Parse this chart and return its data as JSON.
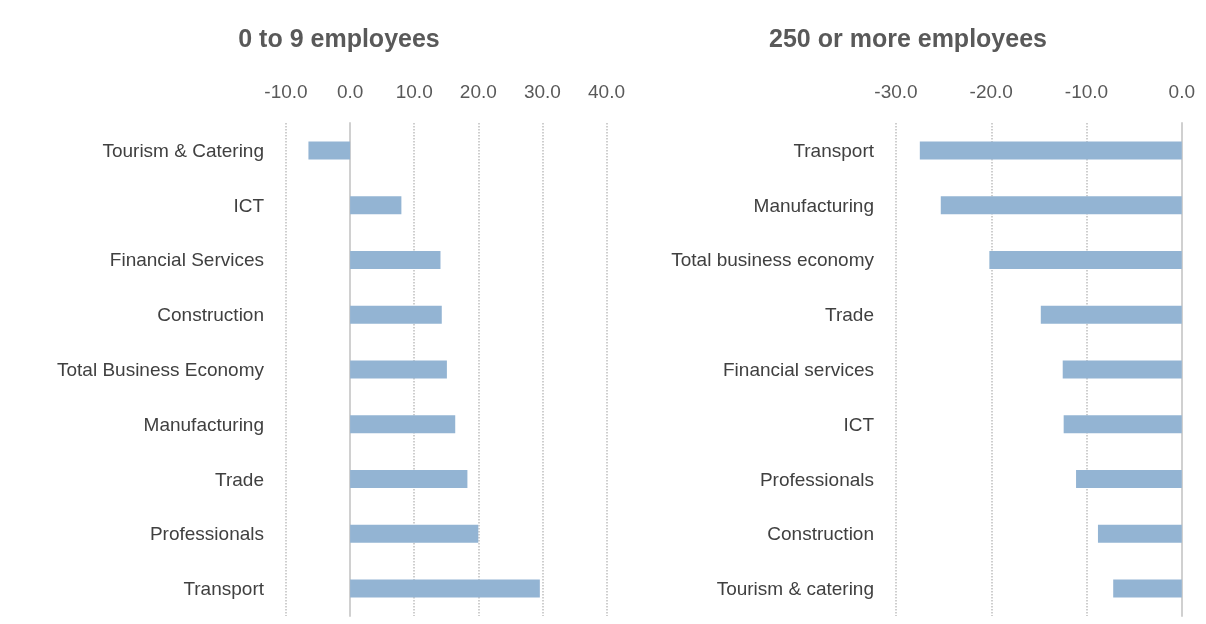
{
  "chart_data": [
    {
      "type": "bar",
      "orientation": "horizontal",
      "title": "0 to 9 employees",
      "categories": [
        "Tourism & Catering",
        "ICT",
        "Financial Services",
        "Construction",
        "Total Business Economy",
        "Manufacturing",
        "Trade",
        "Professionals",
        "Transport"
      ],
      "values": [
        -6.5,
        8.0,
        14.1,
        14.3,
        15.1,
        16.4,
        18.3,
        20.0,
        29.6
      ],
      "color": "#93b4d3",
      "xlim": [
        -10,
        40
      ],
      "xticks": [
        {
          "value": -10,
          "label": "-10.0"
        },
        {
          "value": 0,
          "label": "0.0"
        },
        {
          "value": 10,
          "label": "10.0"
        },
        {
          "value": 20,
          "label": "20.0"
        },
        {
          "value": 30,
          "label": "30.0"
        },
        {
          "value": 40,
          "label": "40.0"
        }
      ],
      "grid": "x"
    },
    {
      "type": "bar",
      "orientation": "horizontal",
      "title": "250 or more employees",
      "categories": [
        "Transport",
        "Manufacturing",
        "Total business economy",
        "Trade",
        "Financial services",
        "ICT",
        "Professionals",
        "Construction",
        "Tourism & catering"
      ],
      "values": [
        -27.5,
        -25.3,
        -20.2,
        -14.8,
        -12.5,
        -12.4,
        -11.1,
        -8.8,
        -7.2
      ],
      "color": "#93b4d3",
      "xlim": [
        -30,
        0
      ],
      "xticks": [
        {
          "value": -30,
          "label": "-30.0"
        },
        {
          "value": -20,
          "label": "-20.0"
        },
        {
          "value": -10,
          "label": "-10.0"
        },
        {
          "value": 0,
          "label": "0.0"
        }
      ],
      "grid": "x"
    }
  ]
}
